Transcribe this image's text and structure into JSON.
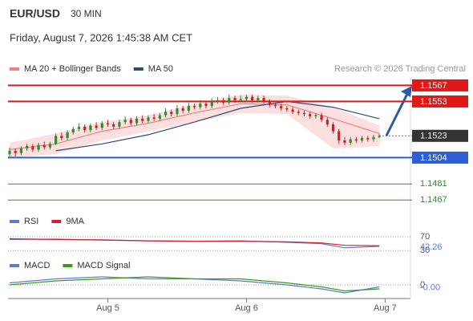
{
  "header": {
    "symbol": "EUR/USD",
    "interval": "30 MIN",
    "datetime": "Friday, August 7, 2026 1:45:38 AM CET",
    "source": "Research © 2026 Trading Central"
  },
  "chart_data": [
    {
      "type": "candlestick",
      "up_color": "#2e8b2e",
      "down_color": "#cc2222",
      "xlim": [
        0,
        68
      ],
      "ylim": [
        1.1456,
        1.1575
      ],
      "open": [
        1.1507,
        1.151,
        1.1508,
        1.1512,
        1.1514,
        1.1511,
        1.1515,
        1.1513,
        1.1516,
        1.1523,
        1.1521,
        1.1526,
        1.1529,
        1.1531,
        1.1528,
        1.1532,
        1.153,
        1.1534,
        1.1533,
        1.1531,
        1.1535,
        1.1537,
        1.1534,
        1.1538,
        1.1536,
        1.1539,
        1.1538,
        1.1541,
        1.1544,
        1.1542,
        1.1547,
        1.1545,
        1.1549,
        1.1548,
        1.1551,
        1.1549,
        1.1553,
        1.1554,
        1.1552,
        1.1556,
        1.1554,
        1.1555,
        1.1557,
        1.1554,
        1.1556,
        1.1553,
        1.155,
        1.1549,
        1.1547,
        1.1546,
        1.1544,
        1.1543,
        1.1542,
        1.154,
        1.1541,
        1.1537,
        1.1533,
        1.1527,
        1.1519,
        1.1517,
        1.152,
        1.1519,
        1.1521,
        1.152,
        1.1522
      ],
      "high": [
        1.1513,
        1.1512,
        1.1514,
        1.1516,
        1.1516,
        1.1517,
        1.1518,
        1.1518,
        1.1525,
        1.1526,
        1.1528,
        1.1531,
        1.1534,
        1.1533,
        1.1534,
        1.1535,
        1.1536,
        1.1537,
        1.1535,
        1.1537,
        1.154,
        1.1539,
        1.154,
        1.1541,
        1.1541,
        1.1542,
        1.1543,
        1.1547,
        1.1546,
        1.155,
        1.1549,
        1.1552,
        1.1551,
        1.1554,
        1.1553,
        1.1556,
        1.1557,
        1.1556,
        1.1559,
        1.1558,
        1.1558,
        1.1559,
        1.1559,
        1.1558,
        1.1558,
        1.1555,
        1.1552,
        1.1551,
        1.1549,
        1.1548,
        1.1546,
        1.1545,
        1.1544,
        1.1543,
        1.1543,
        1.1539,
        1.1535,
        1.1529,
        1.1522,
        1.1522,
        1.1522,
        1.1523,
        1.1523,
        1.1524,
        1.1525
      ],
      "low": [
        1.1504,
        1.1505,
        1.1506,
        1.151,
        1.1509,
        1.1509,
        1.1511,
        1.1511,
        1.1515,
        1.1519,
        1.1519,
        1.1524,
        1.1527,
        1.1526,
        1.1526,
        1.1528,
        1.1528,
        1.1531,
        1.1529,
        1.1529,
        1.1533,
        1.1532,
        1.1532,
        1.1534,
        1.1534,
        1.1536,
        1.1536,
        1.1539,
        1.154,
        1.154,
        1.1543,
        1.1543,
        1.1546,
        1.1546,
        1.1547,
        1.1547,
        1.1551,
        1.155,
        1.155,
        1.1552,
        1.1552,
        1.1553,
        1.1552,
        1.1552,
        1.1551,
        1.1548,
        1.1547,
        1.1545,
        1.1544,
        1.1542,
        1.1541,
        1.154,
        1.1538,
        1.1538,
        1.1535,
        1.1531,
        1.1525,
        1.1516,
        1.1515,
        1.1515,
        1.1517,
        1.1517,
        1.1518,
        1.1518,
        1.1521
      ],
      "close": [
        1.151,
        1.1508,
        1.1512,
        1.1514,
        1.1511,
        1.1515,
        1.1513,
        1.1516,
        1.1523,
        1.1521,
        1.1526,
        1.1529,
        1.1531,
        1.1528,
        1.1532,
        1.153,
        1.1534,
        1.1533,
        1.1531,
        1.1535,
        1.1537,
        1.1534,
        1.1538,
        1.1536,
        1.1539,
        1.1538,
        1.1541,
        1.1544,
        1.1542,
        1.1547,
        1.1545,
        1.1549,
        1.1548,
        1.1551,
        1.1549,
        1.1553,
        1.1554,
        1.1552,
        1.1556,
        1.1554,
        1.1555,
        1.1557,
        1.1554,
        1.1556,
        1.1553,
        1.155,
        1.1549,
        1.1547,
        1.1546,
        1.1544,
        1.1543,
        1.1542,
        1.154,
        1.1541,
        1.1537,
        1.1533,
        1.1527,
        1.1519,
        1.1517,
        1.152,
        1.1519,
        1.1521,
        1.152,
        1.1522,
        1.1523
      ],
      "overlays": [
        {
          "name": "MA 20 + Bollinger Bands",
          "color": "#f08080",
          "band_color": "#fbd3d3",
          "x": [
            0,
            8,
            16,
            24,
            32,
            40,
            48,
            56,
            64
          ],
          "values": [
            1.1511,
            1.1516,
            1.1527,
            1.1534,
            1.1543,
            1.1551,
            1.155,
            1.1538,
            1.1525
          ],
          "upper": [
            1.1517,
            1.1525,
            1.1535,
            1.1541,
            1.1551,
            1.1559,
            1.1558,
            1.1548,
            1.1532
          ],
          "lower": [
            1.1504,
            1.1507,
            1.1519,
            1.1527,
            1.1535,
            1.1543,
            1.1542,
            1.1512,
            1.1514
          ]
        },
        {
          "name": "MA 50",
          "color": "#2b4a7a",
          "x": [
            8,
            16,
            24,
            32,
            40,
            48,
            56,
            64
          ],
          "values": [
            1.151,
            1.1516,
            1.1524,
            1.1535,
            1.1547,
            1.1553,
            1.1548,
            1.1538
          ]
        }
      ],
      "levels": [
        {
          "value": 1.1567,
          "color": "#e01818",
          "style": "box"
        },
        {
          "value": 1.1553,
          "color": "#e01818",
          "style": "box"
        },
        {
          "value": 1.1523,
          "color": "#333333",
          "style": "last"
        },
        {
          "value": 1.1504,
          "color": "#2a5fd6",
          "style": "box"
        },
        {
          "value": 1.1481,
          "color": "#2e8b2e",
          "style": "text"
        },
        {
          "value": 1.1467,
          "color": "#2e8b2e",
          "style": "text"
        }
      ]
    },
    {
      "type": "line",
      "xlim": [
        0,
        68
      ],
      "ylim": [
        12,
        93
      ],
      "yticks": [
        70,
        30
      ],
      "x": [
        0,
        8,
        16,
        24,
        32,
        40,
        48,
        54,
        58,
        64
      ],
      "series": [
        {
          "name": "RSI",
          "color": "#5b7bd5",
          "values": [
            62,
            63,
            60,
            58,
            57,
            58,
            54,
            50,
            38,
            42.26
          ],
          "value_labels": [
            null,
            null,
            null,
            null,
            null,
            null,
            null,
            null,
            null,
            "42.26"
          ]
        },
        {
          "name": "9MA",
          "color": "#d81e2a",
          "values": [
            64,
            62,
            61,
            58,
            57,
            57,
            55,
            52,
            45,
            44
          ]
        }
      ]
    },
    {
      "type": "line",
      "xlim": [
        0,
        68
      ],
      "ylim": [
        -0.0006,
        0.0006
      ],
      "yticks": [
        0
      ],
      "x": [
        0,
        8,
        16,
        24,
        32,
        40,
        48,
        54,
        58,
        64
      ],
      "xticks": [
        {
          "value": 17,
          "label": "Aug 5"
        },
        {
          "value": 41,
          "label": "Aug 6"
        },
        {
          "value": 65,
          "label": "Aug 7"
        }
      ],
      "series": [
        {
          "name": "MACD",
          "color": "#5b7bd5",
          "values": [
            0.0001,
            0.0003,
            0.0004,
            0.0003,
            0.0003,
            0.0002,
            0,
            -0.0002,
            -0.0004,
            -0.0001
          ],
          "value_labels": [
            null,
            null,
            null,
            null,
            null,
            null,
            null,
            null,
            null,
            "-0.00"
          ]
        },
        {
          "name": "MACD Signal",
          "color": "#3a9a1a",
          "values": [
            0,
            0.0002,
            0.0003,
            0.0004,
            0.0003,
            0.0003,
            0.0001,
            -0.0001,
            -0.0003,
            -0.0002
          ]
        }
      ]
    }
  ]
}
